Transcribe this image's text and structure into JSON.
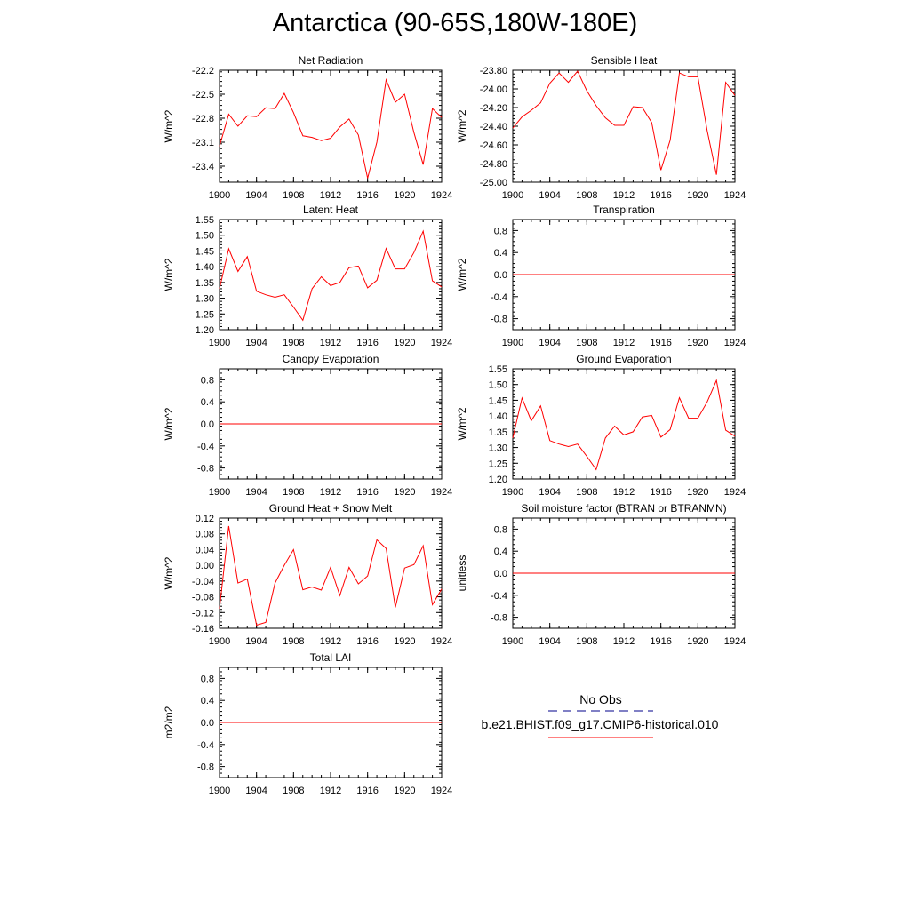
{
  "page": {
    "title": "Antarctica (90-65S,180W-180E)"
  },
  "legend": {
    "items": [
      {
        "label": "No Obs",
        "color": "#00008b",
        "style": "dashed"
      },
      {
        "label": "b.e21.BHIST.f09_g17.CMIP6-historical.010",
        "color": "#ff0000",
        "style": "solid"
      }
    ]
  },
  "chart_data": [
    {
      "type": "line",
      "title": "Net Radiation",
      "xlabel": "",
      "ylabel": "W/m^2",
      "xlim": [
        1900,
        1924
      ],
      "xticks": [
        "1900",
        "1904",
        "1908",
        "1912",
        "1916",
        "1920",
        "1924"
      ],
      "ylim": [
        -23.6,
        -22.2
      ],
      "yticks": [
        "-22.2",
        "-22.5",
        "-22.8",
        "-23.1",
        "-23.4"
      ],
      "x": [
        1900,
        1901,
        1902,
        1903,
        1904,
        1905,
        1906,
        1907,
        1908,
        1909,
        1910,
        1911,
        1912,
        1913,
        1914,
        1915,
        1916,
        1917,
        1918,
        1919,
        1920,
        1921,
        1922,
        1923,
        1924
      ],
      "series": [
        {
          "color": "#ff0000",
          "values": [
            -23.15,
            -22.75,
            -22.9,
            -22.77,
            -22.78,
            -22.67,
            -22.68,
            -22.49,
            -22.73,
            -23.02,
            -23.04,
            -23.08,
            -23.05,
            -22.91,
            -22.81,
            -23.01,
            -23.55,
            -23.1,
            -22.32,
            -22.6,
            -22.5,
            -22.98,
            -23.38,
            -22.68,
            -22.79
          ]
        }
      ]
    },
    {
      "type": "line",
      "title": "Sensible Heat",
      "xlabel": "",
      "ylabel": "W/m^2",
      "xlim": [
        1900,
        1924
      ],
      "xticks": [
        "1900",
        "1904",
        "1908",
        "1912",
        "1916",
        "1920",
        "1924"
      ],
      "ylim": [
        -25.0,
        -23.8
      ],
      "yticks": [
        "-23.80",
        "-24.00",
        "-24.20",
        "-24.40",
        "-24.60",
        "-24.80",
        "-25.00"
      ],
      "x": [
        1900,
        1901,
        1902,
        1903,
        1904,
        1905,
        1906,
        1907,
        1908,
        1909,
        1910,
        1911,
        1912,
        1913,
        1914,
        1915,
        1916,
        1917,
        1918,
        1919,
        1920,
        1921,
        1922,
        1923,
        1924
      ],
      "series": [
        {
          "color": "#ff0000",
          "values": [
            -24.42,
            -24.3,
            -24.23,
            -24.15,
            -23.94,
            -23.83,
            -23.93,
            -23.81,
            -24.02,
            -24.18,
            -24.31,
            -24.39,
            -24.39,
            -24.19,
            -24.2,
            -24.36,
            -24.87,
            -24.55,
            -23.83,
            -23.87,
            -23.87,
            -24.45,
            -24.92,
            -23.93,
            -24.07
          ]
        }
      ]
    },
    {
      "type": "line",
      "title": "Latent Heat",
      "xlabel": "",
      "ylabel": "W/m^2",
      "xlim": [
        1900,
        1924
      ],
      "xticks": [
        "1900",
        "1904",
        "1908",
        "1912",
        "1916",
        "1920",
        "1924"
      ],
      "ylim": [
        1.2,
        1.55
      ],
      "yticks": [
        "1.55",
        "1.50",
        "1.45",
        "1.40",
        "1.35",
        "1.30",
        "1.25",
        "1.20"
      ],
      "x": [
        1900,
        1901,
        1902,
        1903,
        1904,
        1905,
        1906,
        1907,
        1908,
        1909,
        1910,
        1911,
        1912,
        1913,
        1914,
        1915,
        1916,
        1917,
        1918,
        1919,
        1920,
        1921,
        1922,
        1923,
        1924
      ],
      "series": [
        {
          "color": "#ff0000",
          "values": [
            1.33,
            1.457,
            1.385,
            1.432,
            1.322,
            1.311,
            1.303,
            1.311,
            1.272,
            1.23,
            1.33,
            1.368,
            1.34,
            1.35,
            1.397,
            1.402,
            1.333,
            1.357,
            1.458,
            1.393,
            1.393,
            1.445,
            1.513,
            1.355,
            1.336
          ]
        }
      ]
    },
    {
      "type": "line",
      "title": "Transpiration",
      "xlabel": "",
      "ylabel": "W/m^2",
      "xlim": [
        1900,
        1924
      ],
      "xticks": [
        "1900",
        "1904",
        "1908",
        "1912",
        "1916",
        "1920",
        "1924"
      ],
      "ylim": [
        -1.0,
        1.0
      ],
      "yticks": [
        "0.8",
        "0.4",
        "0.0",
        "-0.4",
        "-0.8"
      ],
      "x": [
        1900,
        1901,
        1902,
        1903,
        1904,
        1905,
        1906,
        1907,
        1908,
        1909,
        1910,
        1911,
        1912,
        1913,
        1914,
        1915,
        1916,
        1917,
        1918,
        1919,
        1920,
        1921,
        1922,
        1923,
        1924
      ],
      "series": [
        {
          "color": "#ff0000",
          "values": [
            0,
            0,
            0,
            0,
            0,
            0,
            0,
            0,
            0,
            0,
            0,
            0,
            0,
            0,
            0,
            0,
            0,
            0,
            0,
            0,
            0,
            0,
            0,
            0,
            0
          ]
        }
      ]
    },
    {
      "type": "line",
      "title": "Canopy Evaporation",
      "xlabel": "",
      "ylabel": "W/m^2",
      "xlim": [
        1900,
        1924
      ],
      "xticks": [
        "1900",
        "1904",
        "1908",
        "1912",
        "1916",
        "1920",
        "1924"
      ],
      "ylim": [
        -1.0,
        1.0
      ],
      "yticks": [
        "0.8",
        "0.4",
        "0.0",
        "-0.4",
        "-0.8"
      ],
      "x": [
        1900,
        1901,
        1902,
        1903,
        1904,
        1905,
        1906,
        1907,
        1908,
        1909,
        1910,
        1911,
        1912,
        1913,
        1914,
        1915,
        1916,
        1917,
        1918,
        1919,
        1920,
        1921,
        1922,
        1923,
        1924
      ],
      "series": [
        {
          "color": "#ff0000",
          "values": [
            0,
            0,
            0,
            0,
            0,
            0,
            0,
            0,
            0,
            0,
            0,
            0,
            0,
            0,
            0,
            0,
            0,
            0,
            0,
            0,
            0,
            0,
            0,
            0,
            0
          ]
        }
      ]
    },
    {
      "type": "line",
      "title": "Ground Evaporation",
      "xlabel": "",
      "ylabel": "W/m^2",
      "xlim": [
        1900,
        1924
      ],
      "xticks": [
        "1900",
        "1904",
        "1908",
        "1912",
        "1916",
        "1920",
        "1924"
      ],
      "ylim": [
        1.2,
        1.55
      ],
      "yticks": [
        "1.55",
        "1.50",
        "1.45",
        "1.40",
        "1.35",
        "1.30",
        "1.25",
        "1.20"
      ],
      "x": [
        1900,
        1901,
        1902,
        1903,
        1904,
        1905,
        1906,
        1907,
        1908,
        1909,
        1910,
        1911,
        1912,
        1913,
        1914,
        1915,
        1916,
        1917,
        1918,
        1919,
        1920,
        1921,
        1922,
        1923,
        1924
      ],
      "series": [
        {
          "color": "#ff0000",
          "values": [
            1.33,
            1.457,
            1.385,
            1.432,
            1.322,
            1.311,
            1.303,
            1.311,
            1.272,
            1.23,
            1.33,
            1.368,
            1.34,
            1.35,
            1.397,
            1.402,
            1.333,
            1.357,
            1.458,
            1.393,
            1.393,
            1.445,
            1.513,
            1.355,
            1.336
          ]
        }
      ]
    },
    {
      "type": "line",
      "title": "Ground Heat + Snow Melt",
      "xlabel": "",
      "ylabel": "W/m^2",
      "xlim": [
        1900,
        1924
      ],
      "xticks": [
        "1900",
        "1904",
        "1908",
        "1912",
        "1916",
        "1920",
        "1924"
      ],
      "ylim": [
        -0.16,
        0.12
      ],
      "yticks": [
        "0.12",
        "0.08",
        "0.04",
        "0.00",
        "-0.04",
        "-0.08",
        "-0.12",
        "-0.16"
      ],
      "x": [
        1900,
        1901,
        1902,
        1903,
        1904,
        1905,
        1906,
        1907,
        1908,
        1909,
        1910,
        1911,
        1912,
        1913,
        1914,
        1915,
        1916,
        1917,
        1918,
        1919,
        1920,
        1921,
        1922,
        1923,
        1924
      ],
      "series": [
        {
          "color": "#ff0000",
          "values": [
            -0.11,
            0.1,
            -0.045,
            -0.035,
            -0.152,
            -0.145,
            -0.045,
            0.0,
            0.04,
            -0.062,
            -0.055,
            -0.063,
            -0.005,
            -0.077,
            -0.005,
            -0.047,
            -0.027,
            0.065,
            0.043,
            -0.107,
            -0.007,
            0.002,
            0.05,
            -0.1,
            -0.06
          ]
        }
      ]
    },
    {
      "type": "line",
      "title": "Soil moisture factor (BTRAN or BTRANMN)",
      "xlabel": "",
      "ylabel": "unitless",
      "xlim": [
        1900,
        1924
      ],
      "xticks": [
        "1900",
        "1904",
        "1908",
        "1912",
        "1916",
        "1920",
        "1924"
      ],
      "ylim": [
        -1.0,
        1.0
      ],
      "yticks": [
        "0.8",
        "0.4",
        "0.0",
        "-0.4",
        "-0.8"
      ],
      "x": [
        1900,
        1901,
        1902,
        1903,
        1904,
        1905,
        1906,
        1907,
        1908,
        1909,
        1910,
        1911,
        1912,
        1913,
        1914,
        1915,
        1916,
        1917,
        1918,
        1919,
        1920,
        1921,
        1922,
        1923,
        1924
      ],
      "series": [
        {
          "color": "#ff0000",
          "values": [
            0,
            0,
            0,
            0,
            0,
            0,
            0,
            0,
            0,
            0,
            0,
            0,
            0,
            0,
            0,
            0,
            0,
            0,
            0,
            0,
            0,
            0,
            0,
            0,
            0
          ]
        }
      ]
    },
    {
      "type": "line",
      "title": "Total LAI",
      "xlabel": "",
      "ylabel": "m2/m2",
      "xlim": [
        1900,
        1924
      ],
      "xticks": [
        "1900",
        "1904",
        "1908",
        "1912",
        "1916",
        "1920",
        "1924"
      ],
      "ylim": [
        -1.0,
        1.0
      ],
      "yticks": [
        "0.8",
        "0.4",
        "0.0",
        "-0.4",
        "-0.8"
      ],
      "x": [
        1900,
        1901,
        1902,
        1903,
        1904,
        1905,
        1906,
        1907,
        1908,
        1909,
        1910,
        1911,
        1912,
        1913,
        1914,
        1915,
        1916,
        1917,
        1918,
        1919,
        1920,
        1921,
        1922,
        1923,
        1924
      ],
      "series": [
        {
          "color": "#ff0000",
          "values": [
            0,
            0,
            0,
            0,
            0,
            0,
            0,
            0,
            0,
            0,
            0,
            0,
            0,
            0,
            0,
            0,
            0,
            0,
            0,
            0,
            0,
            0,
            0,
            0,
            0
          ]
        }
      ]
    }
  ]
}
